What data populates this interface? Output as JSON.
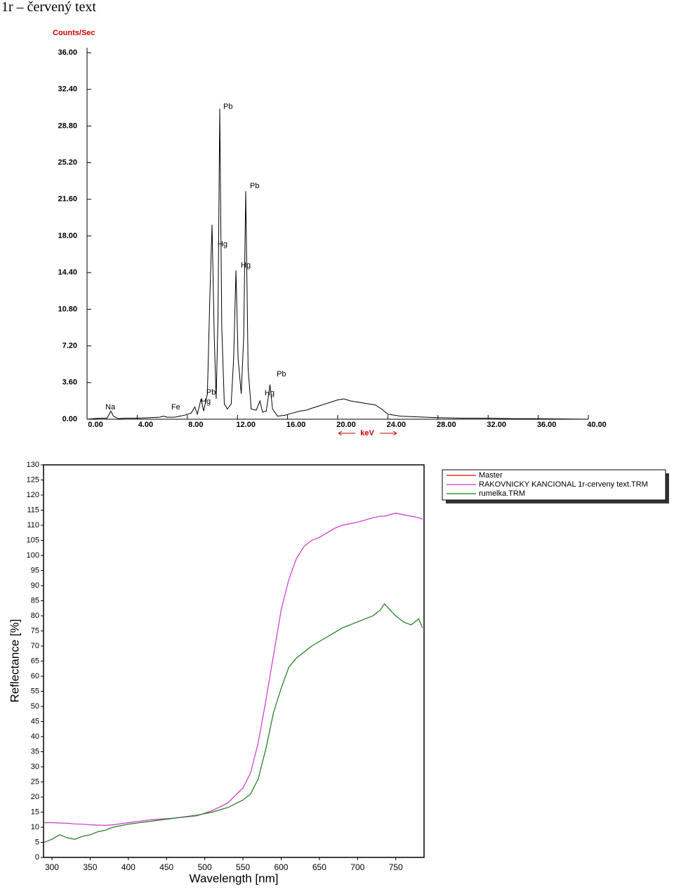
{
  "heading": "1r – červený text",
  "chart_data": [
    {
      "type": "line",
      "y_label": "Counts/Sec",
      "x_label": "keV",
      "x": [
        0,
        1.0,
        1.6,
        1.9,
        2.1,
        2.5,
        3.0,
        4.0,
        5.0,
        5.8,
        6.1,
        6.4,
        7.0,
        7.8,
        8.3,
        8.6,
        8.8,
        9.1,
        9.3,
        9.6,
        9.8,
        9.97,
        10.15,
        10.3,
        10.45,
        10.59,
        10.75,
        10.95,
        11.2,
        11.5,
        11.7,
        11.88,
        12.05,
        12.3,
        12.5,
        12.66,
        12.85,
        13.1,
        13.5,
        13.8,
        14.0,
        14.3,
        14.6,
        14.8,
        15.2,
        15.8,
        16.4,
        17.0,
        17.5,
        18.0,
        18.5,
        19.0,
        19.5,
        20.0,
        20.5,
        21.0,
        21.5,
        22.0,
        22.5,
        23.0,
        23.5,
        24.0,
        25.0,
        26.0,
        27.0,
        28.0,
        30.0,
        32.0,
        34.0,
        36.0,
        38.0,
        40.0
      ],
      "values": [
        0,
        0.1,
        0.1,
        0.8,
        0.3,
        0.05,
        0.1,
        0.1,
        0.15,
        0.2,
        0.3,
        0.2,
        0.2,
        0.4,
        0.6,
        1.2,
        0.5,
        2.0,
        0.8,
        2.5,
        12,
        19.1,
        8,
        2,
        10,
        30.5,
        9,
        1.5,
        1.0,
        1.5,
        6,
        14.6,
        6,
        2.5,
        8,
        22.4,
        5,
        1.0,
        0.9,
        1.8,
        0.7,
        0.8,
        3.4,
        1,
        0.3,
        0.4,
        0.6,
        0.8,
        0.9,
        1.1,
        1.3,
        1.5,
        1.7,
        1.9,
        2.0,
        1.8,
        1.7,
        1.6,
        1.5,
        1.4,
        1.0,
        0.5,
        0.3,
        0.25,
        0.2,
        0.15,
        0.1,
        0.1,
        0.05,
        0.05,
        0.03,
        0
      ],
      "color": "#000000",
      "xlim": [
        0,
        40
      ],
      "xticks": [
        {
          "value": 0,
          "label": "0.00"
        },
        {
          "value": 4,
          "label": "4.00"
        },
        {
          "value": 8,
          "label": "8.00"
        },
        {
          "value": 12,
          "label": "12.00"
        },
        {
          "value": 16,
          "label": "16.00"
        },
        {
          "value": 20,
          "label": "20.00"
        },
        {
          "value": 24,
          "label": "24.00"
        },
        {
          "value": 28,
          "label": "28.00"
        },
        {
          "value": 32,
          "label": "32.00"
        },
        {
          "value": 36,
          "label": "36.00"
        },
        {
          "value": 40,
          "label": "40.00"
        }
      ],
      "ylim": [
        0,
        36
      ],
      "yticks": [
        {
          "value": 0,
          "label": "0.00"
        },
        {
          "value": 3.6,
          "label": "3.60"
        },
        {
          "value": 7.2,
          "label": "7.20"
        },
        {
          "value": 10.8,
          "label": "10.80"
        },
        {
          "value": 14.4,
          "label": "14.40"
        },
        {
          "value": 18,
          "label": "18.00"
        },
        {
          "value": 21.6,
          "label": "21.60"
        },
        {
          "value": 25.2,
          "label": "25.20"
        },
        {
          "value": 28.8,
          "label": "28.80"
        },
        {
          "value": 32.4,
          "label": "32.40"
        },
        {
          "value": 36,
          "label": "36.00"
        }
      ],
      "annotations": [
        {
          "text": "Na",
          "x": 1.46,
          "y": 1.17
        },
        {
          "text": "Fe",
          "x": 6.72,
          "y": 1.17
        },
        {
          "text": "Hg",
          "x": 9.08,
          "y": 1.72
        },
        {
          "text": "Pb",
          "x": 9.52,
          "y": 2.62
        },
        {
          "text": "Hg",
          "x": 10.42,
          "y": 17.17
        },
        {
          "text": "Pb",
          "x": 10.87,
          "y": 30.7
        },
        {
          "text": "Pb",
          "x": 13.0,
          "y": 22.9
        },
        {
          "text": "Hg",
          "x": 12.27,
          "y": 15.1
        },
        {
          "text": "Hg",
          "x": 14.17,
          "y": 2.55
        },
        {
          "text": "Pb",
          "x": 15.13,
          "y": 4.41
        }
      ]
    },
    {
      "type": "line",
      "y_label": "Reflectance [%]",
      "x_label": "Wavelength [nm]",
      "x": [
        290,
        300,
        310,
        320,
        330,
        340,
        350,
        360,
        370,
        380,
        400,
        430,
        460,
        490,
        510,
        530,
        550,
        560,
        570,
        580,
        590,
        600,
        610,
        620,
        630,
        640,
        650,
        660,
        670,
        680,
        700,
        720,
        730,
        735,
        750,
        760,
        770,
        780,
        785
      ],
      "series": [
        {
          "name": "Master",
          "color": "#ff0000",
          "values": [
            null,
            null,
            null,
            null,
            null,
            null,
            null,
            null,
            null,
            null,
            null,
            null,
            null,
            null,
            null,
            null,
            null,
            null,
            null,
            null,
            null,
            null,
            null,
            null,
            null,
            null,
            null,
            null,
            null,
            null,
            null,
            null,
            null,
            null,
            null,
            null,
            null,
            null,
            null
          ]
        },
        {
          "name": "RAKOVNICKY KANCIONAL 1r-cerveny text.TRM",
          "color": "#cc33cc",
          "values": [
            11.5,
            11.5,
            11.4,
            11.3,
            11.1,
            11,
            10.8,
            10.7,
            10.6,
            10.8,
            11.5,
            12.5,
            13,
            13.8,
            15.5,
            18,
            23,
            28,
            38,
            52,
            67,
            82,
            92,
            99,
            103,
            105,
            106,
            107.5,
            109,
            110,
            111,
            112.5,
            113,
            113,
            114,
            113.5,
            113,
            112.5,
            112
          ]
        },
        {
          "name": "rumelka.TRM",
          "color": "#1a7a1a",
          "values": [
            5,
            6,
            7.5,
            6.5,
            6,
            7,
            7.5,
            8.5,
            9,
            10,
            11,
            12,
            13,
            14,
            15,
            16.5,
            19,
            21,
            26,
            36,
            48,
            56,
            63,
            66,
            68,
            70,
            71.5,
            73,
            74.5,
            76,
            78,
            80,
            82,
            84,
            80,
            78,
            77,
            79,
            76
          ]
        }
      ],
      "xlim": [
        289,
        787
      ],
      "xticks": [
        300,
        350,
        400,
        450,
        500,
        550,
        600,
        650,
        700,
        750
      ],
      "ylim": [
        0,
        130
      ],
      "yticks": [
        0,
        5,
        10,
        15,
        20,
        25,
        30,
        35,
        40,
        45,
        50,
        55,
        60,
        65,
        70,
        75,
        80,
        85,
        90,
        95,
        100,
        105,
        110,
        115,
        120,
        125,
        130
      ]
    }
  ]
}
